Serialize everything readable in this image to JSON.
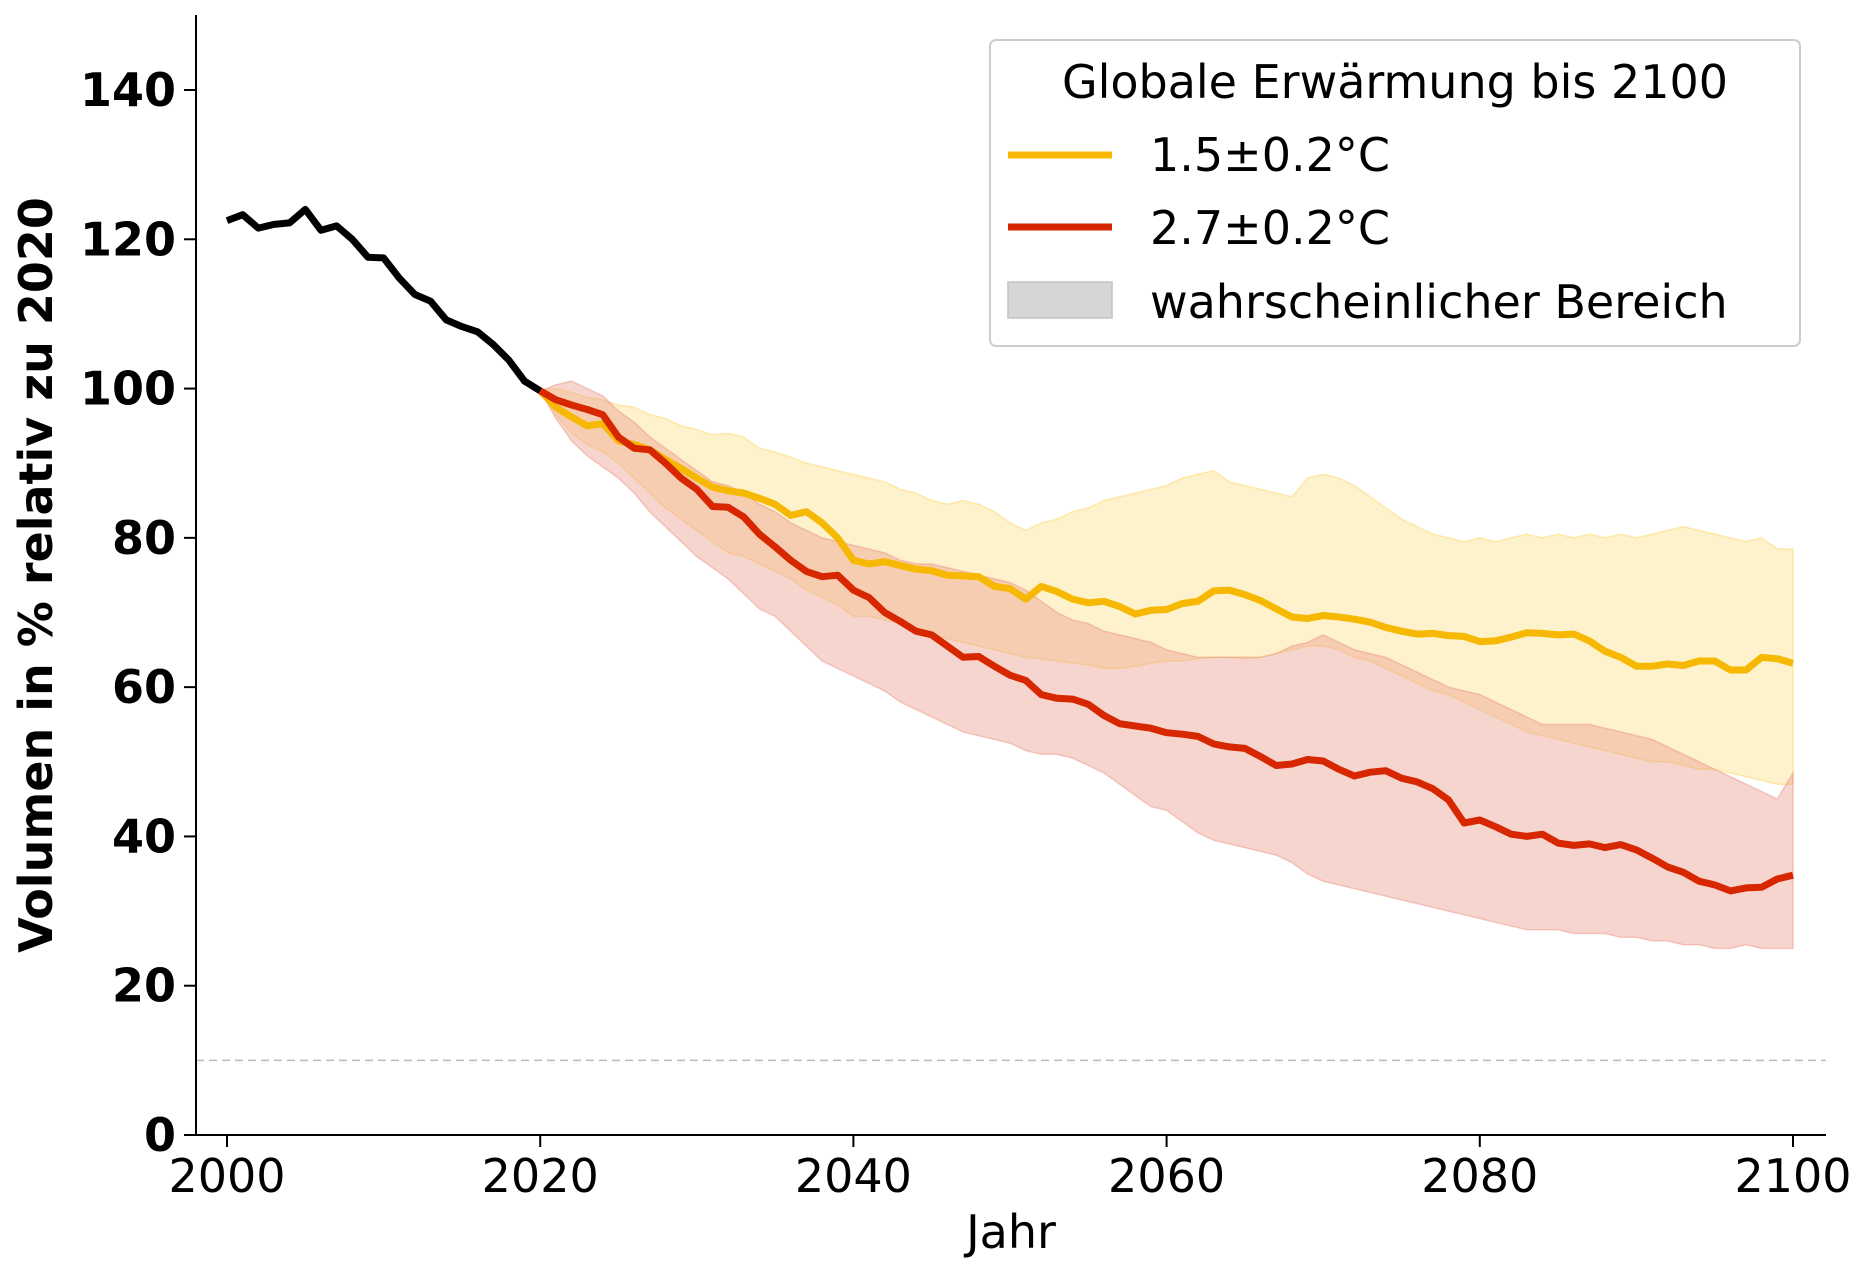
{
  "chart_data": {
    "type": "line",
    "xlabel": "Jahr",
    "ylabel": "Volumen in % relativ zu 2020",
    "xlim": [
      1999,
      2102
    ],
    "ylim": [
      0,
      150
    ],
    "x_ticks": [
      2000,
      2020,
      2040,
      2060,
      2080,
      2100
    ],
    "y_ticks": [
      0,
      20,
      40,
      60,
      80,
      100,
      120,
      140
    ],
    "reference_line": {
      "y": 10,
      "style": "dashed",
      "color": "#bbbbbb"
    },
    "legend": {
      "title": "Globale Erwärmung bis 2100",
      "placement": "top-right",
      "range_label": "wahrscheinlicher Bereich"
    },
    "historical": {
      "color": "#000000",
      "x": [
        2000,
        2001,
        2002,
        2003,
        2004,
        2005,
        2006,
        2007,
        2008,
        2009,
        2010,
        2011,
        2012,
        2013,
        2014,
        2015,
        2016,
        2017,
        2018,
        2019,
        2020
      ],
      "values": [
        122.5,
        123.3,
        121.5,
        122.0,
        122.2,
        124.0,
        121.2,
        121.8,
        120.0,
        117.6,
        117.5,
        114.8,
        112.6,
        111.7,
        109.2,
        108.3,
        107.6,
        105.9,
        103.8,
        101.0,
        99.7
      ]
    },
    "series": [
      {
        "name": "1.5±0.2°C",
        "color": "#f6b800",
        "band_color": "#fcd55a",
        "x": [
          2020,
          2021,
          2022,
          2023,
          2024,
          2025,
          2026,
          2027,
          2028,
          2029,
          2030,
          2031,
          2032,
          2033,
          2034,
          2035,
          2036,
          2037,
          2038,
          2039,
          2040,
          2041,
          2042,
          2043,
          2044,
          2045,
          2046,
          2047,
          2048,
          2049,
          2050,
          2051,
          2052,
          2053,
          2054,
          2055,
          2056,
          2057,
          2058,
          2059,
          2060,
          2061,
          2062,
          2063,
          2064,
          2065,
          2066,
          2067,
          2068,
          2069,
          2070,
          2071,
          2072,
          2073,
          2074,
          2075,
          2076,
          2077,
          2078,
          2079,
          2080,
          2081,
          2082,
          2083,
          2084,
          2085,
          2086,
          2087,
          2088,
          2089,
          2090,
          2091,
          2092,
          2093,
          2094,
          2095,
          2096,
          2097,
          2098,
          2099,
          2100
        ],
        "values": [
          99.7,
          97.5,
          96.2,
          95.0,
          95.3,
          93.0,
          92.5,
          91.8,
          90.5,
          89.3,
          88.0,
          86.8,
          86.3,
          86.0,
          85.3,
          84.5,
          83.0,
          83.5,
          82.0,
          80.0,
          77.0,
          76.5,
          76.8,
          76.3,
          75.8,
          75.6,
          75.0,
          74.9,
          74.8,
          73.5,
          73.2,
          71.8,
          73.5,
          72.8,
          71.8,
          71.3,
          71.5,
          70.8,
          69.8,
          70.3,
          70.4,
          71.2,
          71.5,
          72.9,
          73.0,
          72.4,
          71.6,
          70.5,
          69.4,
          69.2,
          69.6,
          69.4,
          69.1,
          68.7,
          68.0,
          67.5,
          67.1,
          67.2,
          66.9,
          66.8,
          66.1,
          66.2,
          66.7,
          67.3,
          67.2,
          67.0,
          67.1,
          66.2,
          64.8,
          64.0,
          62.8,
          62.8,
          63.1,
          62.9,
          63.5,
          63.5,
          62.3,
          62.3,
          64.0,
          63.8,
          63.2
        ],
        "lower": [
          99.7,
          96.5,
          94.0,
          92.5,
          91.5,
          90.0,
          88.0,
          86.0,
          84.0,
          82.5,
          81.0,
          79.5,
          78.0,
          77.5,
          76.5,
          75.5,
          74.5,
          73.0,
          72.0,
          71.0,
          69.5,
          69.5,
          69.0,
          68.5,
          68.0,
          67.0,
          66.5,
          66.0,
          65.5,
          65.0,
          64.5,
          64.0,
          63.8,
          63.5,
          63.2,
          63.0,
          62.5,
          62.5,
          62.8,
          63.2,
          63.5,
          63.5,
          63.8,
          64.0,
          64.0,
          63.8,
          64.0,
          64.5,
          65.0,
          65.5,
          65.5,
          65.0,
          64.0,
          63.5,
          62.5,
          61.5,
          60.5,
          59.5,
          59.0,
          58.0,
          57.0,
          56.0,
          55.0,
          54.0,
          53.5,
          53.0,
          52.5,
          52.0,
          51.5,
          51.0,
          50.5,
          50.0,
          50.0,
          49.5,
          49.0,
          49.0,
          48.5,
          48.0,
          47.5,
          47.0,
          47.0
        ],
        "upper": [
          99.7,
          100.0,
          99.5,
          98.8,
          98.5,
          97.8,
          97.5,
          96.5,
          96.0,
          95.0,
          94.5,
          93.8,
          94.0,
          93.5,
          92.0,
          91.5,
          90.8,
          90.0,
          89.5,
          89.0,
          88.5,
          88.0,
          87.5,
          86.5,
          86.0,
          85.0,
          84.5,
          85.0,
          84.5,
          83.5,
          82.0,
          81.0,
          82.0,
          82.5,
          83.5,
          84.0,
          85.0,
          85.5,
          86.0,
          86.5,
          87.0,
          88.0,
          88.5,
          89.0,
          87.5,
          87.0,
          86.5,
          86.0,
          85.5,
          88.0,
          88.5,
          88.0,
          87.0,
          85.5,
          84.0,
          82.5,
          81.5,
          80.5,
          80.0,
          79.5,
          80.0,
          79.5,
          80.0,
          80.5,
          80.0,
          80.5,
          80.0,
          80.5,
          80.0,
          80.5,
          80.0,
          80.5,
          81.0,
          81.5,
          81.0,
          80.5,
          80.0,
          79.5,
          80.0,
          78.5,
          78.5
        ]
      },
      {
        "name": "2.7±0.2°C",
        "color": "#d62700",
        "band_color": "#e99080",
        "x": [
          2020,
          2021,
          2022,
          2023,
          2024,
          2025,
          2026,
          2027,
          2028,
          2029,
          2030,
          2031,
          2032,
          2033,
          2034,
          2035,
          2036,
          2037,
          2038,
          2039,
          2040,
          2041,
          2042,
          2043,
          2044,
          2045,
          2046,
          2047,
          2048,
          2049,
          2050,
          2051,
          2052,
          2053,
          2054,
          2055,
          2056,
          2057,
          2058,
          2059,
          2060,
          2061,
          2062,
          2063,
          2064,
          2065,
          2066,
          2067,
          2068,
          2069,
          2070,
          2071,
          2072,
          2073,
          2074,
          2075,
          2076,
          2077,
          2078,
          2079,
          2080,
          2081,
          2082,
          2083,
          2084,
          2085,
          2086,
          2087,
          2088,
          2089,
          2090,
          2091,
          2092,
          2093,
          2094,
          2095,
          2096,
          2097,
          2098,
          2099,
          2100
        ],
        "values": [
          99.7,
          98.5,
          97.8,
          97.2,
          96.5,
          93.5,
          92.0,
          91.8,
          90.0,
          88.0,
          86.5,
          84.2,
          84.1,
          82.8,
          80.5,
          78.8,
          77.0,
          75.5,
          74.8,
          75.0,
          73.0,
          72.0,
          70.0,
          68.8,
          67.5,
          67.0,
          65.5,
          64.0,
          64.1,
          62.8,
          61.6,
          60.9,
          59.0,
          58.5,
          58.4,
          57.7,
          56.2,
          55.1,
          54.8,
          54.5,
          53.9,
          53.7,
          53.4,
          52.4,
          52.0,
          51.8,
          50.7,
          49.5,
          49.7,
          50.3,
          50.1,
          49.0,
          48.1,
          48.6,
          48.8,
          47.8,
          47.3,
          46.4,
          44.9,
          41.8,
          42.2,
          41.3,
          40.3,
          40.0,
          40.3,
          39.1,
          38.8,
          39.0,
          38.5,
          38.9,
          38.2,
          37.1,
          35.9,
          35.2,
          34.0,
          33.5,
          32.7,
          33.1,
          33.2,
          34.3,
          34.8
        ],
        "lower": [
          99.7,
          96.0,
          93.0,
          91.0,
          89.5,
          88.0,
          86.0,
          83.5,
          81.5,
          79.5,
          77.5,
          76.0,
          74.5,
          72.5,
          70.5,
          69.5,
          67.5,
          65.5,
          63.5,
          62.5,
          61.5,
          60.5,
          59.5,
          58.0,
          57.0,
          56.0,
          55.0,
          54.0,
          53.5,
          53.0,
          52.5,
          51.5,
          51.0,
          51.0,
          50.5,
          49.5,
          48.5,
          47.0,
          45.5,
          44.0,
          43.5,
          42.0,
          40.5,
          39.5,
          39.0,
          38.5,
          38.0,
          37.5,
          36.5,
          35.0,
          34.0,
          33.5,
          33.0,
          32.5,
          32.0,
          31.5,
          31.0,
          30.5,
          30.0,
          29.5,
          29.0,
          28.5,
          28.0,
          27.5,
          27.5,
          27.5,
          27.0,
          27.0,
          27.0,
          26.5,
          26.5,
          26.0,
          26.0,
          25.5,
          25.5,
          25.0,
          25.0,
          25.5,
          25.0,
          25.0,
          25.0
        ],
        "upper": [
          99.7,
          100.5,
          101.0,
          100.0,
          99.0,
          97.0,
          95.5,
          93.5,
          92.0,
          90.5,
          89.0,
          87.5,
          87.0,
          86.0,
          84.5,
          83.5,
          82.0,
          81.0,
          80.0,
          79.5,
          79.0,
          78.5,
          78.0,
          77.0,
          76.5,
          76.5,
          76.0,
          75.5,
          75.0,
          74.5,
          74.0,
          73.0,
          71.5,
          70.0,
          69.0,
          68.5,
          67.5,
          67.0,
          66.5,
          66.0,
          65.0,
          64.5,
          64.0,
          64.0,
          64.0,
          64.0,
          64.0,
          64.5,
          65.5,
          66.0,
          67.0,
          66.0,
          65.0,
          64.5,
          64.0,
          63.0,
          62.0,
          61.0,
          60.0,
          59.5,
          59.0,
          58.0,
          57.0,
          56.0,
          55.0,
          55.0,
          55.0,
          55.0,
          54.5,
          54.0,
          53.5,
          53.0,
          52.0,
          51.0,
          50.0,
          49.0,
          48.0,
          47.0,
          46.0,
          45.0,
          48.5
        ]
      }
    ]
  }
}
